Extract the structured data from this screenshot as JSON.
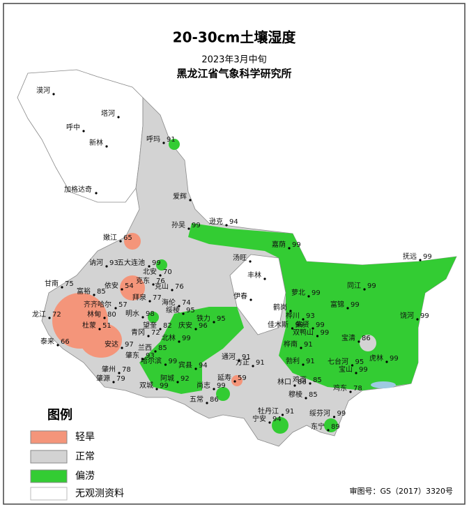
{
  "header": {
    "title": "20-30cm土壤湿度",
    "subtitle": "2023年3月中旬",
    "institute": "黑龙江省气象科学研究所"
  },
  "legend": {
    "title": "图例",
    "items": [
      "轻旱",
      "正常",
      "偏涝",
      "无观测资料"
    ]
  },
  "map_number": "审图号：GS（2017）3320号",
  "stations": [
    {
      "name": "漠河"
    },
    {
      "name": "塔河"
    },
    {
      "name": "呼中"
    },
    {
      "name": "新林"
    },
    {
      "name": "加格达奇"
    },
    {
      "name": "呼玛",
      "value": 91
    },
    {
      "name": "爱辉"
    },
    {
      "name": "孙吴",
      "value": 99
    },
    {
      "name": "逊克",
      "value": 94
    },
    {
      "name": "嘉荫",
      "value": 99
    },
    {
      "name": "嫩江",
      "value": 65
    },
    {
      "name": "讷河",
      "value": 93
    },
    {
      "name": "五大连池",
      "value": 99
    },
    {
      "name": "北安",
      "value": 70
    },
    {
      "name": "甘南",
      "value": 75
    },
    {
      "name": "依安",
      "value": 54
    },
    {
      "name": "克东",
      "value": 76
    },
    {
      "name": "克山",
      "value": 76
    },
    {
      "name": "富裕",
      "value": 85
    },
    {
      "name": "齐齐哈尔",
      "value": 57
    },
    {
      "name": "拜泉",
      "value": 77
    },
    {
      "name": "海伦",
      "value": 74
    },
    {
      "name": "龙江",
      "value": 72
    },
    {
      "name": "林甸",
      "value": 80
    },
    {
      "name": "明水",
      "value": 98
    },
    {
      "name": "绥棱",
      "value": 95
    },
    {
      "name": "杜蒙",
      "value": 51
    },
    {
      "name": "望奎",
      "value": 82
    },
    {
      "name": "庆安",
      "value": 96
    },
    {
      "name": "铁力",
      "value": 95
    },
    {
      "name": "泰来",
      "value": 66
    },
    {
      "name": "青冈",
      "value": 72
    },
    {
      "name": "北林",
      "value": 99
    },
    {
      "name": "安达",
      "value": 97
    },
    {
      "name": "兰西",
      "value": 85
    },
    {
      "name": "肇东",
      "value": 93
    },
    {
      "name": "哈尔滨",
      "value": 99
    },
    {
      "name": "宾县",
      "value": 94
    },
    {
      "name": "通河",
      "value": 91
    },
    {
      "name": "方正",
      "value": 91
    },
    {
      "name": "肇州",
      "value": 78
    },
    {
      "name": "肇源",
      "value": 79
    },
    {
      "name": "阿城",
      "value": 92
    },
    {
      "name": "双城",
      "value": 99
    },
    {
      "name": "尚志",
      "value": 99
    },
    {
      "name": "延寿",
      "value": 59
    },
    {
      "name": "五常",
      "value": 86
    },
    {
      "name": "汤旺"
    },
    {
      "name": "丰林"
    },
    {
      "name": "伊春"
    },
    {
      "name": "鹤岗"
    },
    {
      "name": "萝北",
      "value": 99
    },
    {
      "name": "同江",
      "value": 99
    },
    {
      "name": "抚远",
      "value": 99
    },
    {
      "name": "富锦",
      "value": 99
    },
    {
      "name": "桦川",
      "value": 93
    },
    {
      "name": "佳木斯",
      "value": 99
    },
    {
      "name": "集贤",
      "value": 99
    },
    {
      "name": "双鸭山",
      "value": 99
    },
    {
      "name": "饶河",
      "value": 99
    },
    {
      "name": "宝清",
      "value": 86
    },
    {
      "name": "桦南",
      "value": 91
    },
    {
      "name": "勃利",
      "value": 91
    },
    {
      "name": "七台河",
      "value": 95
    },
    {
      "name": "虎林",
      "value": 99
    },
    {
      "name": "宝山",
      "value": 99
    },
    {
      "name": "鸡东",
      "value": 78
    },
    {
      "name": "林口",
      "value": 86
    },
    {
      "name": "鸡西",
      "value": 85
    },
    {
      "name": "穆棱",
      "value": 85
    },
    {
      "name": "牡丹江",
      "value": 91
    },
    {
      "name": "绥芬河",
      "value": 99
    },
    {
      "name": "宁安",
      "value": 94
    },
    {
      "name": "东宁",
      "value": 89
    }
  ]
}
